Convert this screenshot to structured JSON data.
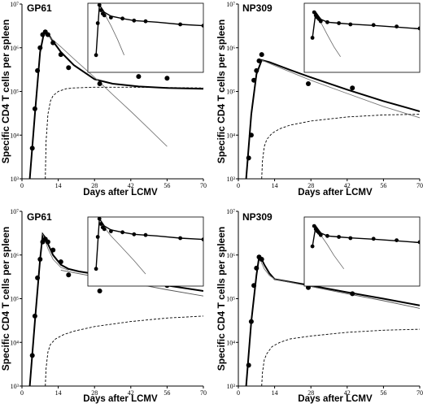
{
  "chart_data": [
    {
      "type": "line",
      "title": "GP61",
      "xlabel": "Days after LCMV",
      "ylabel": "Specific CD4 T cells per spleen",
      "xlim": [
        0,
        70
      ],
      "ylim": [
        1000,
        10000000
      ],
      "yscale": "log",
      "xticks": [
        "0",
        "14",
        "28",
        "42",
        "56",
        "70"
      ],
      "yticks": [
        "10³",
        "10⁴",
        "10⁵",
        "10⁶",
        "10⁷"
      ],
      "series": [
        {
          "role": "data",
          "x": [
            4,
            5,
            6,
            7,
            8,
            9,
            10,
            12,
            15,
            18,
            30,
            45,
            56
          ],
          "y": [
            5000,
            40000,
            300000,
            1000000,
            2000000,
            2300000,
            2000000,
            1300000,
            700000,
            350000,
            150000,
            220000,
            200000
          ]
        },
        {
          "role": "total-fit",
          "x": [
            3,
            5,
            7,
            8.5,
            10,
            12,
            15,
            20,
            28,
            35,
            45,
            56,
            70
          ],
          "y": [
            1000,
            30000,
            800000,
            2200000,
            2100000,
            1400000,
            800000,
            400000,
            190000,
            150000,
            130000,
            120000,
            115000
          ]
        },
        {
          "role": "fast-decay",
          "x": [
            8.5,
            10,
            15,
            20,
            28,
            35,
            42,
            49,
            56
          ],
          "y": [
            2200000,
            1900000,
            1050000,
            560000,
            210000,
            85000,
            35000,
            14000,
            5500
          ]
        },
        {
          "role": "memory-component",
          "x": [
            9,
            9.3,
            10,
            11,
            12,
            14,
            17,
            20,
            28,
            42,
            70
          ],
          "y": [
            1000,
            7000,
            30000,
            60000,
            80000,
            100000,
            115000,
            120000,
            125000,
            125000,
            120000
          ]
        }
      ],
      "inset": {
        "xlim": [
          0,
          70
        ],
        "ylim": [
          1000,
          10000000
        ],
        "data": {
          "x": [
            5,
            6,
            7,
            8,
            9,
            10,
            14,
            21,
            28,
            35,
            56,
            70
          ],
          "y": [
            10000,
            700000,
            8000000,
            4000000,
            2500000,
            2000000,
            1500000,
            1300000,
            1000000,
            900000,
            600000,
            500000
          ]
        },
        "fit": {
          "x": [
            5,
            7,
            10,
            14,
            21,
            28,
            42,
            56,
            70
          ],
          "y": [
            10000,
            8000000,
            3000000,
            1800000,
            1300000,
            1000000,
            800000,
            600000,
            500000
          ]
        },
        "fast": {
          "x": [
            7,
            10,
            14,
            18,
            22
          ],
          "y": [
            8000000,
            2500000,
            500000,
            80000,
            10000
          ]
        }
      }
    },
    {
      "type": "line",
      "title": "NP309",
      "xlabel": "Days after LCMV",
      "ylabel": "Specific CD4 T cells per spleen",
      "xlim": [
        0,
        70
      ],
      "ylim": [
        1000,
        10000000
      ],
      "yscale": "log",
      "xticks": [
        "0",
        "14",
        "28",
        "42",
        "56",
        "70"
      ],
      "yticks": [
        "10³",
        "10⁴",
        "10⁵",
        "10⁶",
        "10⁷"
      ],
      "series": [
        {
          "role": "data",
          "x": [
            4,
            5,
            6,
            7,
            8,
            9,
            27,
            44
          ],
          "y": [
            3000,
            10000,
            180000,
            300000,
            500000,
            700000,
            150000,
            120000
          ]
        },
        {
          "role": "total-fit",
          "x": [
            3,
            5,
            7,
            9,
            12,
            20,
            28,
            42,
            56,
            70
          ],
          "y": [
            1000,
            30000,
            250000,
            520000,
            470000,
            310000,
            210000,
            110000,
            60000,
            35000
          ]
        },
        {
          "role": "fast-decay",
          "x": [
            9,
            14,
            28,
            42,
            56,
            70
          ],
          "y": [
            520000,
            390000,
            180000,
            90000,
            45000,
            25000
          ]
        },
        {
          "role": "memory-component",
          "x": [
            9,
            9.3,
            10,
            11,
            13,
            16,
            20,
            28,
            42,
            56,
            70
          ],
          "y": [
            1000,
            2500,
            5500,
            8000,
            11000,
            14000,
            17000,
            21000,
            26000,
            29000,
            30000
          ]
        }
      ],
      "inset": {
        "xlim": [
          0,
          70
        ],
        "ylim": [
          1000,
          10000000
        ],
        "data": {
          "x": [
            5,
            6,
            7,
            8,
            9,
            10,
            14,
            21,
            28,
            42,
            56,
            70
          ],
          "y": [
            100000,
            3000000,
            2000000,
            1500000,
            1200000,
            900000,
            800000,
            700000,
            600000,
            550000,
            450000,
            350000
          ]
        },
        "fit": {
          "x": [
            5,
            7,
            10,
            14,
            21,
            28,
            42,
            56,
            70
          ],
          "y": [
            100000,
            3000000,
            1200000,
            800000,
            700000,
            620000,
            520000,
            420000,
            330000
          ]
        },
        "fast": {
          "x": [
            7,
            10,
            14,
            18,
            22
          ],
          "y": [
            3000000,
            800000,
            150000,
            30000,
            8000
          ]
        }
      }
    },
    {
      "type": "line",
      "title": "GP61",
      "xlabel": "Days after LCMV",
      "ylabel": "Specific CD4 T cells per spleen",
      "xlim": [
        0,
        70
      ],
      "ylim": [
        1000,
        10000000
      ],
      "yscale": "log",
      "xticks": [
        "0",
        "14",
        "28",
        "42",
        "56",
        "70"
      ],
      "yticks": [
        "10³",
        "10⁴",
        "10⁵",
        "10⁶",
        "10⁷"
      ],
      "series": [
        {
          "role": "data",
          "x": [
            4,
            5,
            6,
            7,
            8,
            9,
            10,
            12,
            15,
            18,
            30,
            45,
            56
          ],
          "y": [
            5000,
            40000,
            300000,
            800000,
            2000000,
            2300000,
            2000000,
            1300000,
            700000,
            350000,
            150000,
            220000,
            200000
          ]
        },
        {
          "role": "total-fit",
          "x": [
            3,
            5,
            7,
            8,
            9,
            10,
            12,
            15,
            18,
            22,
            28,
            42,
            56,
            70
          ],
          "y": [
            1000,
            30000,
            800000,
            3000000,
            2500000,
            1800000,
            1000000,
            600000,
            480000,
            420000,
            370000,
            270000,
            200000,
            150000
          ]
        },
        {
          "role": "fast-decay",
          "x": [
            8,
            9,
            10,
            12,
            15,
            18
          ],
          "y": [
            3000000,
            2100000,
            1400000,
            800000,
            520000,
            450000
          ]
        },
        {
          "role": "slow-decay",
          "x": [
            15,
            28,
            42,
            56,
            70
          ],
          "y": [
            450000,
            320000,
            230000,
            160000,
            115000
          ]
        },
        {
          "role": "memory-component",
          "x": [
            9,
            9.3,
            10,
            11,
            13,
            16,
            20,
            28,
            42,
            56,
            70
          ],
          "y": [
            1000,
            2500,
            6000,
            9000,
            12000,
            15000,
            18000,
            23000,
            30000,
            36000,
            40000
          ]
        }
      ],
      "inset": {
        "xlim": [
          0,
          70
        ],
        "ylim": [
          1000,
          10000000
        ],
        "data": {
          "x": [
            5,
            6,
            7,
            8,
            9,
            10,
            14,
            21,
            28,
            35,
            56,
            70
          ],
          "y": [
            10000,
            700000,
            8000000,
            4000000,
            2500000,
            2000000,
            1500000,
            1300000,
            1000000,
            900000,
            600000,
            500000
          ]
        },
        "fit": {
          "x": [
            5,
            7,
            10,
            14,
            21,
            28,
            42,
            56,
            70
          ],
          "y": [
            10000,
            8000000,
            3000000,
            1800000,
            1300000,
            1000000,
            800000,
            600000,
            500000
          ]
        },
        "fast": {
          "x": [
            7,
            10,
            14,
            20,
            28,
            35
          ],
          "y": [
            8000000,
            2500000,
            800000,
            200000,
            30000,
            5000
          ]
        }
      }
    },
    {
      "type": "line",
      "title": "NP309",
      "xlabel": "Days after LCMV",
      "ylabel": "Specific CD4 T cells per spleen",
      "xlim": [
        0,
        70
      ],
      "ylim": [
        1000,
        10000000
      ],
      "yscale": "log",
      "xticks": [
        "0",
        "14",
        "28",
        "42",
        "56",
        "70"
      ],
      "yticks": [
        "10³",
        "10⁴",
        "10⁵",
        "10⁶",
        "10⁷"
      ],
      "series": [
        {
          "role": "data",
          "x": [
            4,
            5,
            6,
            7,
            8,
            9,
            27,
            44
          ],
          "y": [
            3000,
            30000,
            200000,
            500000,
            900000,
            800000,
            180000,
            130000
          ]
        },
        {
          "role": "total-fit",
          "x": [
            3,
            5,
            7,
            8,
            9,
            10,
            12,
            14,
            28,
            42,
            56,
            70
          ],
          "y": [
            1000,
            30000,
            350000,
            900000,
            800000,
            600000,
            380000,
            280000,
            200000,
            140000,
            100000,
            70000
          ]
        },
        {
          "role": "fast-decay",
          "x": [
            8,
            9,
            10,
            12,
            14
          ],
          "y": [
            900000,
            650000,
            480000,
            340000,
            280000
          ]
        },
        {
          "role": "slow-decay",
          "x": [
            14,
            28,
            42,
            56,
            70
          ],
          "y": [
            280000,
            190000,
            130000,
            90000,
            60000
          ]
        },
        {
          "role": "memory-component",
          "x": [
            9,
            9.3,
            10,
            11,
            13,
            16,
            20,
            28,
            42,
            56,
            70
          ],
          "y": [
            1000,
            2000,
            4000,
            5500,
            8000,
            10000,
            12000,
            14000,
            17000,
            19000,
            20000
          ]
        }
      ],
      "inset": {
        "xlim": [
          0,
          70
        ],
        "ylim": [
          1000,
          10000000
        ],
        "data": {
          "x": [
            5,
            6,
            7,
            8,
            9,
            10,
            14,
            21,
            28,
            42,
            56,
            70
          ],
          "y": [
            200000,
            3000000,
            2000000,
            1500000,
            1200000,
            900000,
            800000,
            700000,
            600000,
            550000,
            450000,
            350000
          ]
        },
        "fit": {
          "x": [
            5,
            7,
            10,
            14,
            21,
            28,
            42,
            56,
            70
          ],
          "y": [
            200000,
            3000000,
            1200000,
            800000,
            700000,
            620000,
            520000,
            420000,
            330000
          ]
        },
        "fast": {
          "x": [
            7,
            10,
            14,
            18,
            24
          ],
          "y": [
            3000000,
            900000,
            250000,
            60000,
            10000
          ]
        }
      }
    }
  ]
}
